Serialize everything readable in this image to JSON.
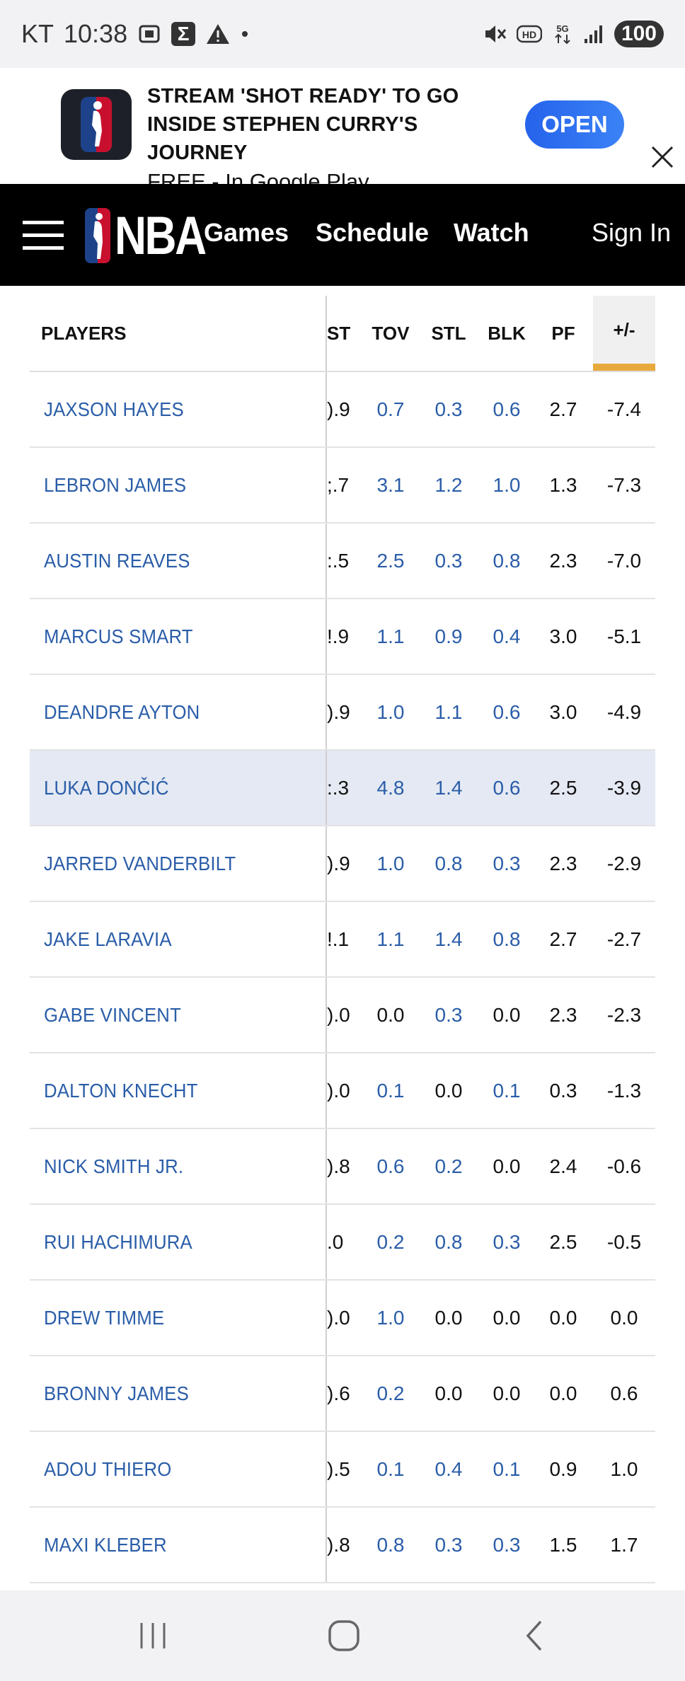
{
  "status_bar": {
    "carrier": "KT",
    "time": "10:38",
    "battery": "100",
    "icons": [
      "screenshot-icon",
      "sigma-icon",
      "warning-icon",
      "dot-icon",
      "mute-icon",
      "hd-icon",
      "5g-icon",
      "signal-icon"
    ]
  },
  "ad": {
    "title_line1": "STREAM 'SHOT READY' TO GO",
    "title_line2": "INSIDE STEPHEN CURRY'S JOURNEY",
    "subtitle": "FREE - In Google Play",
    "open_label": "OPEN"
  },
  "nav": {
    "logo_text": "NBA",
    "links": [
      "Games",
      "Schedule",
      "Watch"
    ],
    "sign_in": "Sign In"
  },
  "table": {
    "headers": {
      "players": "PLAYERS",
      "cols": [
        "ST",
        "TOV",
        "STL",
        "BLK",
        "PF",
        "+/-"
      ]
    },
    "rows": [
      {
        "name": "JAXSON HAYES",
        "vals": [
          ").9",
          "0.7",
          "0.3",
          "0.6",
          "2.7",
          "-7.4"
        ]
      },
      {
        "name": "LEBRON JAMES",
        "vals": [
          ";.7",
          "3.1",
          "1.2",
          "1.0",
          "1.3",
          "-7.3"
        ]
      },
      {
        "name": "AUSTIN REAVES",
        "vals": [
          ":.5",
          "2.5",
          "0.3",
          "0.8",
          "2.3",
          "-7.0"
        ]
      },
      {
        "name": "MARCUS SMART",
        "vals": [
          "!.9",
          "1.1",
          "0.9",
          "0.4",
          "3.0",
          "-5.1"
        ]
      },
      {
        "name": "DEANDRE AYTON",
        "vals": [
          ").9",
          "1.0",
          "1.1",
          "0.6",
          "3.0",
          "-4.9"
        ]
      },
      {
        "name": "LUKA DONČIĆ",
        "vals": [
          ":.3",
          "4.8",
          "1.4",
          "0.6",
          "2.5",
          "-3.9"
        ]
      },
      {
        "name": "JARRED VANDERBILT",
        "vals": [
          ").9",
          "1.0",
          "0.8",
          "0.3",
          "2.3",
          "-2.9"
        ]
      },
      {
        "name": "JAKE LARAVIA",
        "vals": [
          "!.1",
          "1.1",
          "1.4",
          "0.8",
          "2.7",
          "-2.7"
        ]
      },
      {
        "name": "GABE VINCENT",
        "vals": [
          ").0",
          "0.0",
          "0.3",
          "0.0",
          "2.3",
          "-2.3"
        ]
      },
      {
        "name": "DALTON KNECHT",
        "vals": [
          ").0",
          "0.1",
          "0.0",
          "0.1",
          "0.3",
          "-1.3"
        ]
      },
      {
        "name": "NICK SMITH JR.",
        "vals": [
          ").8",
          "0.6",
          "0.2",
          "0.0",
          "2.4",
          "-0.6"
        ]
      },
      {
        "name": "RUI HACHIMURA",
        "vals": [
          ".0",
          "0.2",
          "0.8",
          "0.3",
          "2.5",
          "-0.5"
        ]
      },
      {
        "name": "DREW TIMME",
        "vals": [
          ").0",
          "1.0",
          "0.0",
          "0.0",
          "0.0",
          "0.0"
        ]
      },
      {
        "name": "BRONNY JAMES",
        "vals": [
          ").6",
          "0.2",
          "0.0",
          "0.0",
          "0.0",
          "0.6"
        ]
      },
      {
        "name": "ADOU THIERO",
        "vals": [
          ").5",
          "0.1",
          "0.4",
          "0.1",
          "0.9",
          "1.0"
        ]
      },
      {
        "name": "MAXI KLEBER",
        "vals": [
          ").8",
          "0.8",
          "0.3",
          "0.3",
          "1.5",
          "1.7"
        ]
      }
    ],
    "highlight_row": 5,
    "link_color": "#2a5da8",
    "sort_accent": "#e8a93c"
  }
}
